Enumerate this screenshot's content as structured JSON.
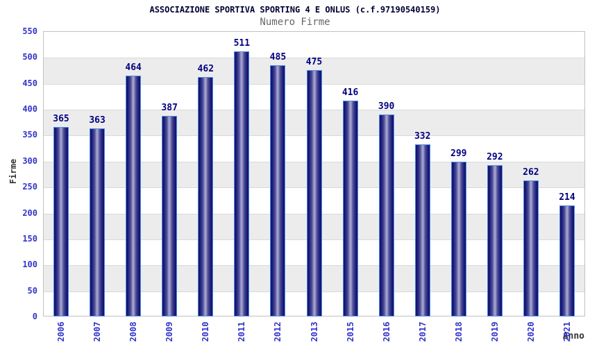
{
  "chart_data": {
    "type": "bar",
    "title": "ASSOCIAZIONE SPORTIVA SPORTING 4 E ONLUS (c.f.97190540159)",
    "subtitle": "Numero Firme",
    "xlabel": "Anno",
    "ylabel": "Firme",
    "categories": [
      "2006",
      "2007",
      "2008",
      "2009",
      "2010",
      "2011",
      "2012",
      "2013",
      "2015",
      "2016",
      "2017",
      "2018",
      "2019",
      "2020",
      "2021"
    ],
    "values": [
      365,
      363,
      464,
      387,
      462,
      511,
      485,
      475,
      416,
      390,
      332,
      299,
      292,
      262,
      214
    ],
    "ylim": [
      0,
      550
    ],
    "ytick_step": 50,
    "grid": true,
    "legend": "none",
    "note_missing_year": "2014 absent from x-axis",
    "colors": {
      "title": "#000033",
      "subtitle": "#666666",
      "tick_label": "#3333cc",
      "value_label": "#000080",
      "axis_label": "#333333",
      "bar_dark": "#121265",
      "bar_light": "#a2a2d0",
      "bar_border": "#4d8de8",
      "band_gray": "#ececec",
      "gridline": "#d9d9d9",
      "plot_border": "#c0c0c0",
      "background": "#ffffff"
    }
  }
}
